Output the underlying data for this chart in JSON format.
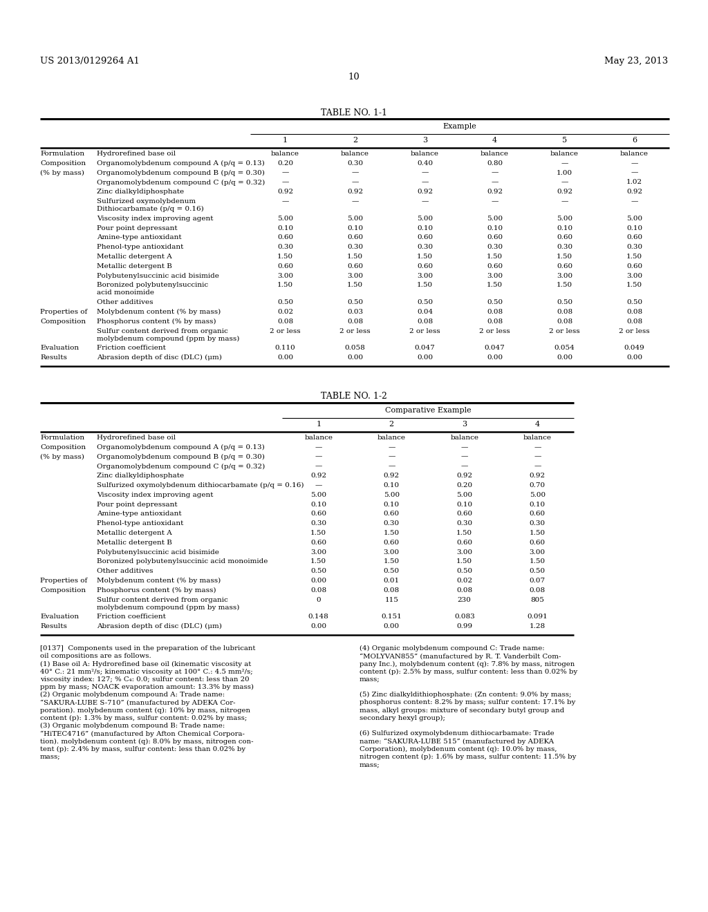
{
  "header_left": "US 2013/0129264 A1",
  "header_right": "May 23, 2013",
  "page_number": "10",
  "table1_title": "TABLE NO. 1-1",
  "table2_title": "TABLE NO. 1-2",
  "table1": {
    "col_header_group": "Example",
    "col_headers": [
      "1",
      "2",
      "3",
      "4",
      "5",
      "6"
    ],
    "row_groups": [
      {
        "group": "Formulation",
        "row": "Hydrorefined base oil",
        "vals": [
          "balance",
          "balance",
          "balance",
          "balance",
          "balance",
          "balance"
        ],
        "multi": false
      },
      {
        "group": "Composition",
        "row": "Organomolybdenum compound A (p/q = 0.13)",
        "vals": [
          "0.20",
          "0.30",
          "0.40",
          "0.80",
          "—",
          "—"
        ],
        "multi": false
      },
      {
        "group": "(% by mass)",
        "row": "Organomolybdenum compound B (p/q = 0.30)",
        "vals": [
          "—",
          "—",
          "—",
          "—",
          "1.00",
          "—"
        ],
        "multi": false
      },
      {
        "group": "",
        "row": "Organomolybdenum compound C (p/q = 0.32)",
        "vals": [
          "—",
          "—",
          "—",
          "—",
          "—",
          "1.02"
        ],
        "multi": false
      },
      {
        "group": "",
        "row": "Zinc dialkyldiphosphate",
        "vals": [
          "0.92",
          "0.92",
          "0.92",
          "0.92",
          "0.92",
          "0.92"
        ],
        "multi": false
      },
      {
        "group": "",
        "row": "Sulfurized oxymolybdenum\nDithiocarbamate (p/q = 0.16)",
        "vals": [
          "—",
          "—",
          "—",
          "—",
          "—",
          "—"
        ],
        "multi": true
      },
      {
        "group": "",
        "row": "Viscosity index improving agent",
        "vals": [
          "5.00",
          "5.00",
          "5.00",
          "5.00",
          "5.00",
          "5.00"
        ],
        "multi": false
      },
      {
        "group": "",
        "row": "Pour point depressant",
        "vals": [
          "0.10",
          "0.10",
          "0.10",
          "0.10",
          "0.10",
          "0.10"
        ],
        "multi": false
      },
      {
        "group": "",
        "row": "Amine-type antioxidant",
        "vals": [
          "0.60",
          "0.60",
          "0.60",
          "0.60",
          "0.60",
          "0.60"
        ],
        "multi": false
      },
      {
        "group": "",
        "row": "Phenol-type antioxidant",
        "vals": [
          "0.30",
          "0.30",
          "0.30",
          "0.30",
          "0.30",
          "0.30"
        ],
        "multi": false
      },
      {
        "group": "",
        "row": "Metallic detergent A",
        "vals": [
          "1.50",
          "1.50",
          "1.50",
          "1.50",
          "1.50",
          "1.50"
        ],
        "multi": false
      },
      {
        "group": "",
        "row": "Metallic detergent B",
        "vals": [
          "0.60",
          "0.60",
          "0.60",
          "0.60",
          "0.60",
          "0.60"
        ],
        "multi": false
      },
      {
        "group": "",
        "row": "Polybutenylsuccinic acid bisimide",
        "vals": [
          "3.00",
          "3.00",
          "3.00",
          "3.00",
          "3.00",
          "3.00"
        ],
        "multi": false
      },
      {
        "group": "",
        "row": "Boronized polybutenylsuccinic\nacid monoimide",
        "vals": [
          "1.50",
          "1.50",
          "1.50",
          "1.50",
          "1.50",
          "1.50"
        ],
        "multi": true
      },
      {
        "group": "",
        "row": "Other additives",
        "vals": [
          "0.50",
          "0.50",
          "0.50",
          "0.50",
          "0.50",
          "0.50"
        ],
        "multi": false
      },
      {
        "group": "Properties of",
        "row": "Molybdenum content (% by mass)",
        "vals": [
          "0.02",
          "0.03",
          "0.04",
          "0.08",
          "0.08",
          "0.08"
        ],
        "multi": false
      },
      {
        "group": "Composition",
        "row": "Phosphorus content (% by mass)",
        "vals": [
          "0.08",
          "0.08",
          "0.08",
          "0.08",
          "0.08",
          "0.08"
        ],
        "multi": false
      },
      {
        "group": "",
        "row": "Sulfur content derived from organic\nmolybdenum compound (ppm by mass)",
        "vals": [
          "2 or less",
          "2 or less",
          "2 or less",
          "2 or less",
          "2 or less",
          "2 or less"
        ],
        "multi": true
      },
      {
        "group": "Evaluation",
        "row": "Friction coefficient",
        "vals": [
          "0.110",
          "0.058",
          "0.047",
          "0.047",
          "0.054",
          "0.049"
        ],
        "multi": false
      },
      {
        "group": "Results",
        "row": "Abrasion depth of disc (DLC) (μm)",
        "vals": [
          "0.00",
          "0.00",
          "0.00",
          "0.00",
          "0.00",
          "0.00"
        ],
        "multi": false
      }
    ]
  },
  "table2": {
    "col_header_group": "Comparative Example",
    "col_headers": [
      "1",
      "2",
      "3",
      "4"
    ],
    "row_groups": [
      {
        "group": "Formulation",
        "row": "Hydrorefined base oil",
        "vals": [
          "balance",
          "balance",
          "balance",
          "balance"
        ],
        "multi": false
      },
      {
        "group": "Composition",
        "row": "Organomolybdenum compound A (p/q = 0.13)",
        "vals": [
          "—",
          "—",
          "—",
          "—"
        ],
        "multi": false
      },
      {
        "group": "(% by mass)",
        "row": "Organomolybdenum compound B (p/q = 0.30)",
        "vals": [
          "—",
          "—",
          "—",
          "—"
        ],
        "multi": false
      },
      {
        "group": "",
        "row": "Organomolybdenum compound C (p/q = 0.32)",
        "vals": [
          "—",
          "—",
          "—",
          "—"
        ],
        "multi": false
      },
      {
        "group": "",
        "row": "Zinc dialkyldiphosphate",
        "vals": [
          "0.92",
          "0.92",
          "0.92",
          "0.92"
        ],
        "multi": false
      },
      {
        "group": "",
        "row": "Sulfurized oxymolybdenum dithiocarbamate (p/q = 0.16)",
        "vals": [
          "—",
          "0.10",
          "0.20",
          "0.70"
        ],
        "multi": false
      },
      {
        "group": "",
        "row": "Viscosity index improving agent",
        "vals": [
          "5.00",
          "5.00",
          "5.00",
          "5.00"
        ],
        "multi": false
      },
      {
        "group": "",
        "row": "Pour point depressant",
        "vals": [
          "0.10",
          "0.10",
          "0.10",
          "0.10"
        ],
        "multi": false
      },
      {
        "group": "",
        "row": "Amine-type antioxidant",
        "vals": [
          "0.60",
          "0.60",
          "0.60",
          "0.60"
        ],
        "multi": false
      },
      {
        "group": "",
        "row": "Phenol-type antioxidant",
        "vals": [
          "0.30",
          "0.30",
          "0.30",
          "0.30"
        ],
        "multi": false
      },
      {
        "group": "",
        "row": "Metallic detergent A",
        "vals": [
          "1.50",
          "1.50",
          "1.50",
          "1.50"
        ],
        "multi": false
      },
      {
        "group": "",
        "row": "Metallic detergent B",
        "vals": [
          "0.60",
          "0.60",
          "0.60",
          "0.60"
        ],
        "multi": false
      },
      {
        "group": "",
        "row": "Polybutenylsuccinic acid bisimide",
        "vals": [
          "3.00",
          "3.00",
          "3.00",
          "3.00"
        ],
        "multi": false
      },
      {
        "group": "",
        "row": "Boronized polybutenylsuccinic acid monoimide",
        "vals": [
          "1.50",
          "1.50",
          "1.50",
          "1.50"
        ],
        "multi": false
      },
      {
        "group": "",
        "row": "Other additives",
        "vals": [
          "0.50",
          "0.50",
          "0.50",
          "0.50"
        ],
        "multi": false
      },
      {
        "group": "Properties of",
        "row": "Molybdenum content (% by mass)",
        "vals": [
          "0.00",
          "0.01",
          "0.02",
          "0.07"
        ],
        "multi": false
      },
      {
        "group": "Composition",
        "row": "Phosphorus content (% by mass)",
        "vals": [
          "0.08",
          "0.08",
          "0.08",
          "0.08"
        ],
        "multi": false
      },
      {
        "group": "",
        "row": "Sulfur content derived from organic\nmolybdenum compound (ppm by mass)",
        "vals": [
          "0",
          "115",
          "230",
          "805"
        ],
        "multi": true
      },
      {
        "group": "Evaluation",
        "row": "Friction coefficient",
        "vals": [
          "0.148",
          "0.151",
          "0.083",
          "0.091"
        ],
        "multi": false
      },
      {
        "group": "Results",
        "row": "Abrasion depth of disc (DLC) (μm)",
        "vals": [
          "0.00",
          "0.00",
          "0.99",
          "1.28"
        ],
        "multi": false
      }
    ]
  },
  "fn1_lines": [
    "[0137]  Components used in the preparation of the lubricant",
    "oil compositions are as follows.",
    "(1) Base oil A: Hydrorefined base oil (kinematic viscosity at",
    "40° C.: 21 mm²/s; kinematic viscosity at 100° C.: 4.5 mm²/s;",
    "viscosity index: 127; % C₄: 0.0; sulfur content: less than 20",
    "ppm by mass; NOACK evaporation amount: 13.3% by mass)",
    "(2) Organic molybdenum compound A: Trade name:",
    "“SAKURA-LUBE S-710” (manufactured by ADEKA Cor-",
    "poration). molybdenum content (q): 10% by mass, nitrogen",
    "content (p): 1.3% by mass, sulfur content: 0.02% by mass;",
    "(3) Organic molybdenum compound B: Trade name:",
    "“HiTEC4716” (manufactured by Afton Chemical Corpora-",
    "tion). molybdenum content (q): 8.0% by mass, nitrogen con-",
    "tent (p): 2.4% by mass, sulfur content: less than 0.02% by",
    "mass;"
  ],
  "fn2_lines": [
    "(4) Organic molybdenum compound C: Trade name:",
    "“MOLYVAN855” (manufactured by R. T. Vanderbilt Com-",
    "pany Inc.), molybdenum content (q): 7.8% by mass, nitrogen",
    "content (p): 2.5% by mass, sulfur content: less than 0.02% by",
    "mass;",
    "",
    "(5) Zinc dialkyldithiophosphate: (Zn content: 9.0% by mass;",
    "phosphorus content: 8.2% by mass; sulfur content: 17.1% by",
    "mass, alkyl groups: mixture of secondary butyl group and",
    "secondary hexyl group);",
    "",
    "(6) Sulfurized oxymolybdenum dithiocarbamate: Trade",
    "name: “SAKURA-LUBE 515” (manufactured by ADEKA",
    "Corporation), molybdenum content (q): 10.0% by mass,",
    "nitrogen content (p): 1.6% by mass, sulfur content: 11.5% by",
    "mass;"
  ]
}
